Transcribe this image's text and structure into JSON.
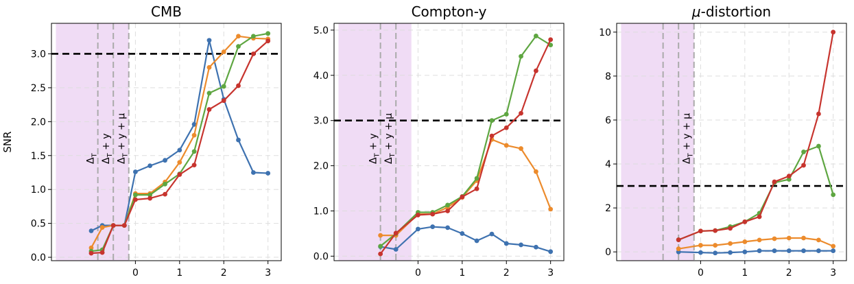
{
  "chart_data": [
    {
      "type": "line",
      "title": "CMB",
      "ylabel": "SNR",
      "xlim": [
        -1.9,
        3.3
      ],
      "ylim": [
        -0.05,
        3.45
      ],
      "xticks": [
        0,
        1,
        2,
        3
      ],
      "yticks": [
        0.0,
        0.5,
        1.0,
        1.5,
        2.0,
        2.5,
        3.0
      ],
      "ytick_labels": [
        "0.0",
        "0.5",
        "1.0",
        "1.5",
        "2.0",
        "2.5",
        "3.0"
      ],
      "threshold": 3.0,
      "shaded_region": [
        -1.8,
        -0.15
      ],
      "vlines": [
        {
          "x": -0.85,
          "label": "Δ_T"
        },
        {
          "x": -0.5,
          "label": "Δ_T + y"
        },
        {
          "x": -0.15,
          "label": "Δ_T + y + μ"
        }
      ],
      "x": [
        -1,
        -0.75,
        -0.5,
        -0.25,
        0,
        0.33,
        0.67,
        1,
        1.33,
        1.67,
        2,
        2.33,
        2.67,
        3
      ],
      "series": [
        {
          "color": "#3e72b0",
          "values": [
            0.39,
            0.47,
            0.47,
            0.47,
            1.26,
            1.35,
            1.43,
            1.58,
            1.96,
            3.2,
            2.33,
            1.73,
            1.25,
            1.24
          ]
        },
        {
          "color": "#ec8b2c",
          "values": [
            0.14,
            0.44,
            0.47,
            0.47,
            0.94,
            0.94,
            1.11,
            1.4,
            1.8,
            2.8,
            3.03,
            3.26,
            3.23,
            3.22
          ]
        },
        {
          "color": "#5ea641",
          "values": [
            0.09,
            0.11,
            0.47,
            0.47,
            0.92,
            0.92,
            1.08,
            1.23,
            1.56,
            2.42,
            2.52,
            3.11,
            3.26,
            3.3
          ]
        },
        {
          "color": "#c7342e",
          "values": [
            0.06,
            0.07,
            0.47,
            0.47,
            0.85,
            0.87,
            0.93,
            1.22,
            1.36,
            2.18,
            2.31,
            2.53,
            3.0,
            3.19
          ]
        }
      ]
    },
    {
      "type": "line",
      "title": "Compton-y",
      "xlim": [
        -1.9,
        3.3
      ],
      "ylim": [
        -0.1,
        5.15
      ],
      "xticks": [
        0,
        1,
        2,
        3
      ],
      "yticks": [
        0.0,
        1.0,
        2.0,
        3.0,
        4.0,
        5.0
      ],
      "ytick_labels": [
        "0.0",
        "1.0",
        "2.0",
        "3.0",
        "4.0",
        "5.0"
      ],
      "threshold": 3.0,
      "shaded_region": [
        -1.8,
        -0.15
      ],
      "vlines": [
        {
          "x": -0.85,
          "label": "Δ_T + y"
        },
        {
          "x": -0.5,
          "label": "Δ_T + y + μ"
        }
      ],
      "x": [
        -0.85,
        -0.5,
        0,
        0.33,
        0.67,
        1,
        1.33,
        1.67,
        2,
        2.33,
        2.67,
        3
      ],
      "series": [
        {
          "color": "#3e72b0",
          "values": [
            0.21,
            0.15,
            0.6,
            0.65,
            0.63,
            0.5,
            0.34,
            0.49,
            0.28,
            0.25,
            0.2,
            0.1
          ]
        },
        {
          "color": "#ec8b2c",
          "values": [
            0.46,
            0.46,
            0.93,
            0.93,
            1.08,
            1.3,
            1.67,
            2.58,
            2.45,
            2.38,
            1.87,
            1.04
          ]
        },
        {
          "color": "#5ea641",
          "values": [
            0.22,
            0.5,
            0.97,
            0.97,
            1.13,
            1.32,
            1.72,
            3.0,
            3.14,
            4.42,
            4.87,
            4.67
          ]
        },
        {
          "color": "#c7342e",
          "values": [
            0.05,
            0.51,
            0.91,
            0.93,
            1.0,
            1.31,
            1.49,
            2.66,
            2.84,
            3.16,
            4.1,
            4.79
          ]
        }
      ]
    },
    {
      "type": "line",
      "title": "μ-distortion",
      "xlim": [
        -1.9,
        3.3
      ],
      "ylim": [
        -0.4,
        10.4
      ],
      "xticks": [
        0,
        1,
        2,
        3
      ],
      "yticks": [
        0,
        2,
        4,
        6,
        8,
        10
      ],
      "ytick_labels": [
        "0",
        "2",
        "4",
        "6",
        "8",
        "10"
      ],
      "threshold": 3.0,
      "shaded_region": [
        -1.8,
        -0.15
      ],
      "vlines": [
        {
          "x": -0.85,
          "label": ""
        },
        {
          "x": -0.5,
          "label": ""
        },
        {
          "x": -0.15,
          "label": "Δ_T + y + μ"
        }
      ],
      "x": [
        -0.5,
        0,
        0.33,
        0.67,
        1,
        1.33,
        1.67,
        2,
        2.33,
        2.67,
        3
      ],
      "series": [
        {
          "color": "#3e72b0",
          "values": [
            0.0,
            -0.03,
            -0.05,
            -0.03,
            0.0,
            0.05,
            0.05,
            0.05,
            0.05,
            0.05,
            0.05
          ]
        },
        {
          "color": "#ec8b2c",
          "values": [
            0.14,
            0.3,
            0.3,
            0.38,
            0.46,
            0.54,
            0.6,
            0.63,
            0.63,
            0.54,
            0.26
          ]
        },
        {
          "color": "#5ea641",
          "values": [
            0.55,
            0.95,
            0.97,
            1.15,
            1.37,
            1.76,
            3.15,
            3.3,
            4.55,
            4.81,
            2.6
          ]
        },
        {
          "color": "#c7342e",
          "values": [
            0.55,
            0.95,
            0.97,
            1.07,
            1.37,
            1.6,
            3.19,
            3.45,
            3.94,
            6.28,
            10.0
          ]
        }
      ]
    }
  ]
}
